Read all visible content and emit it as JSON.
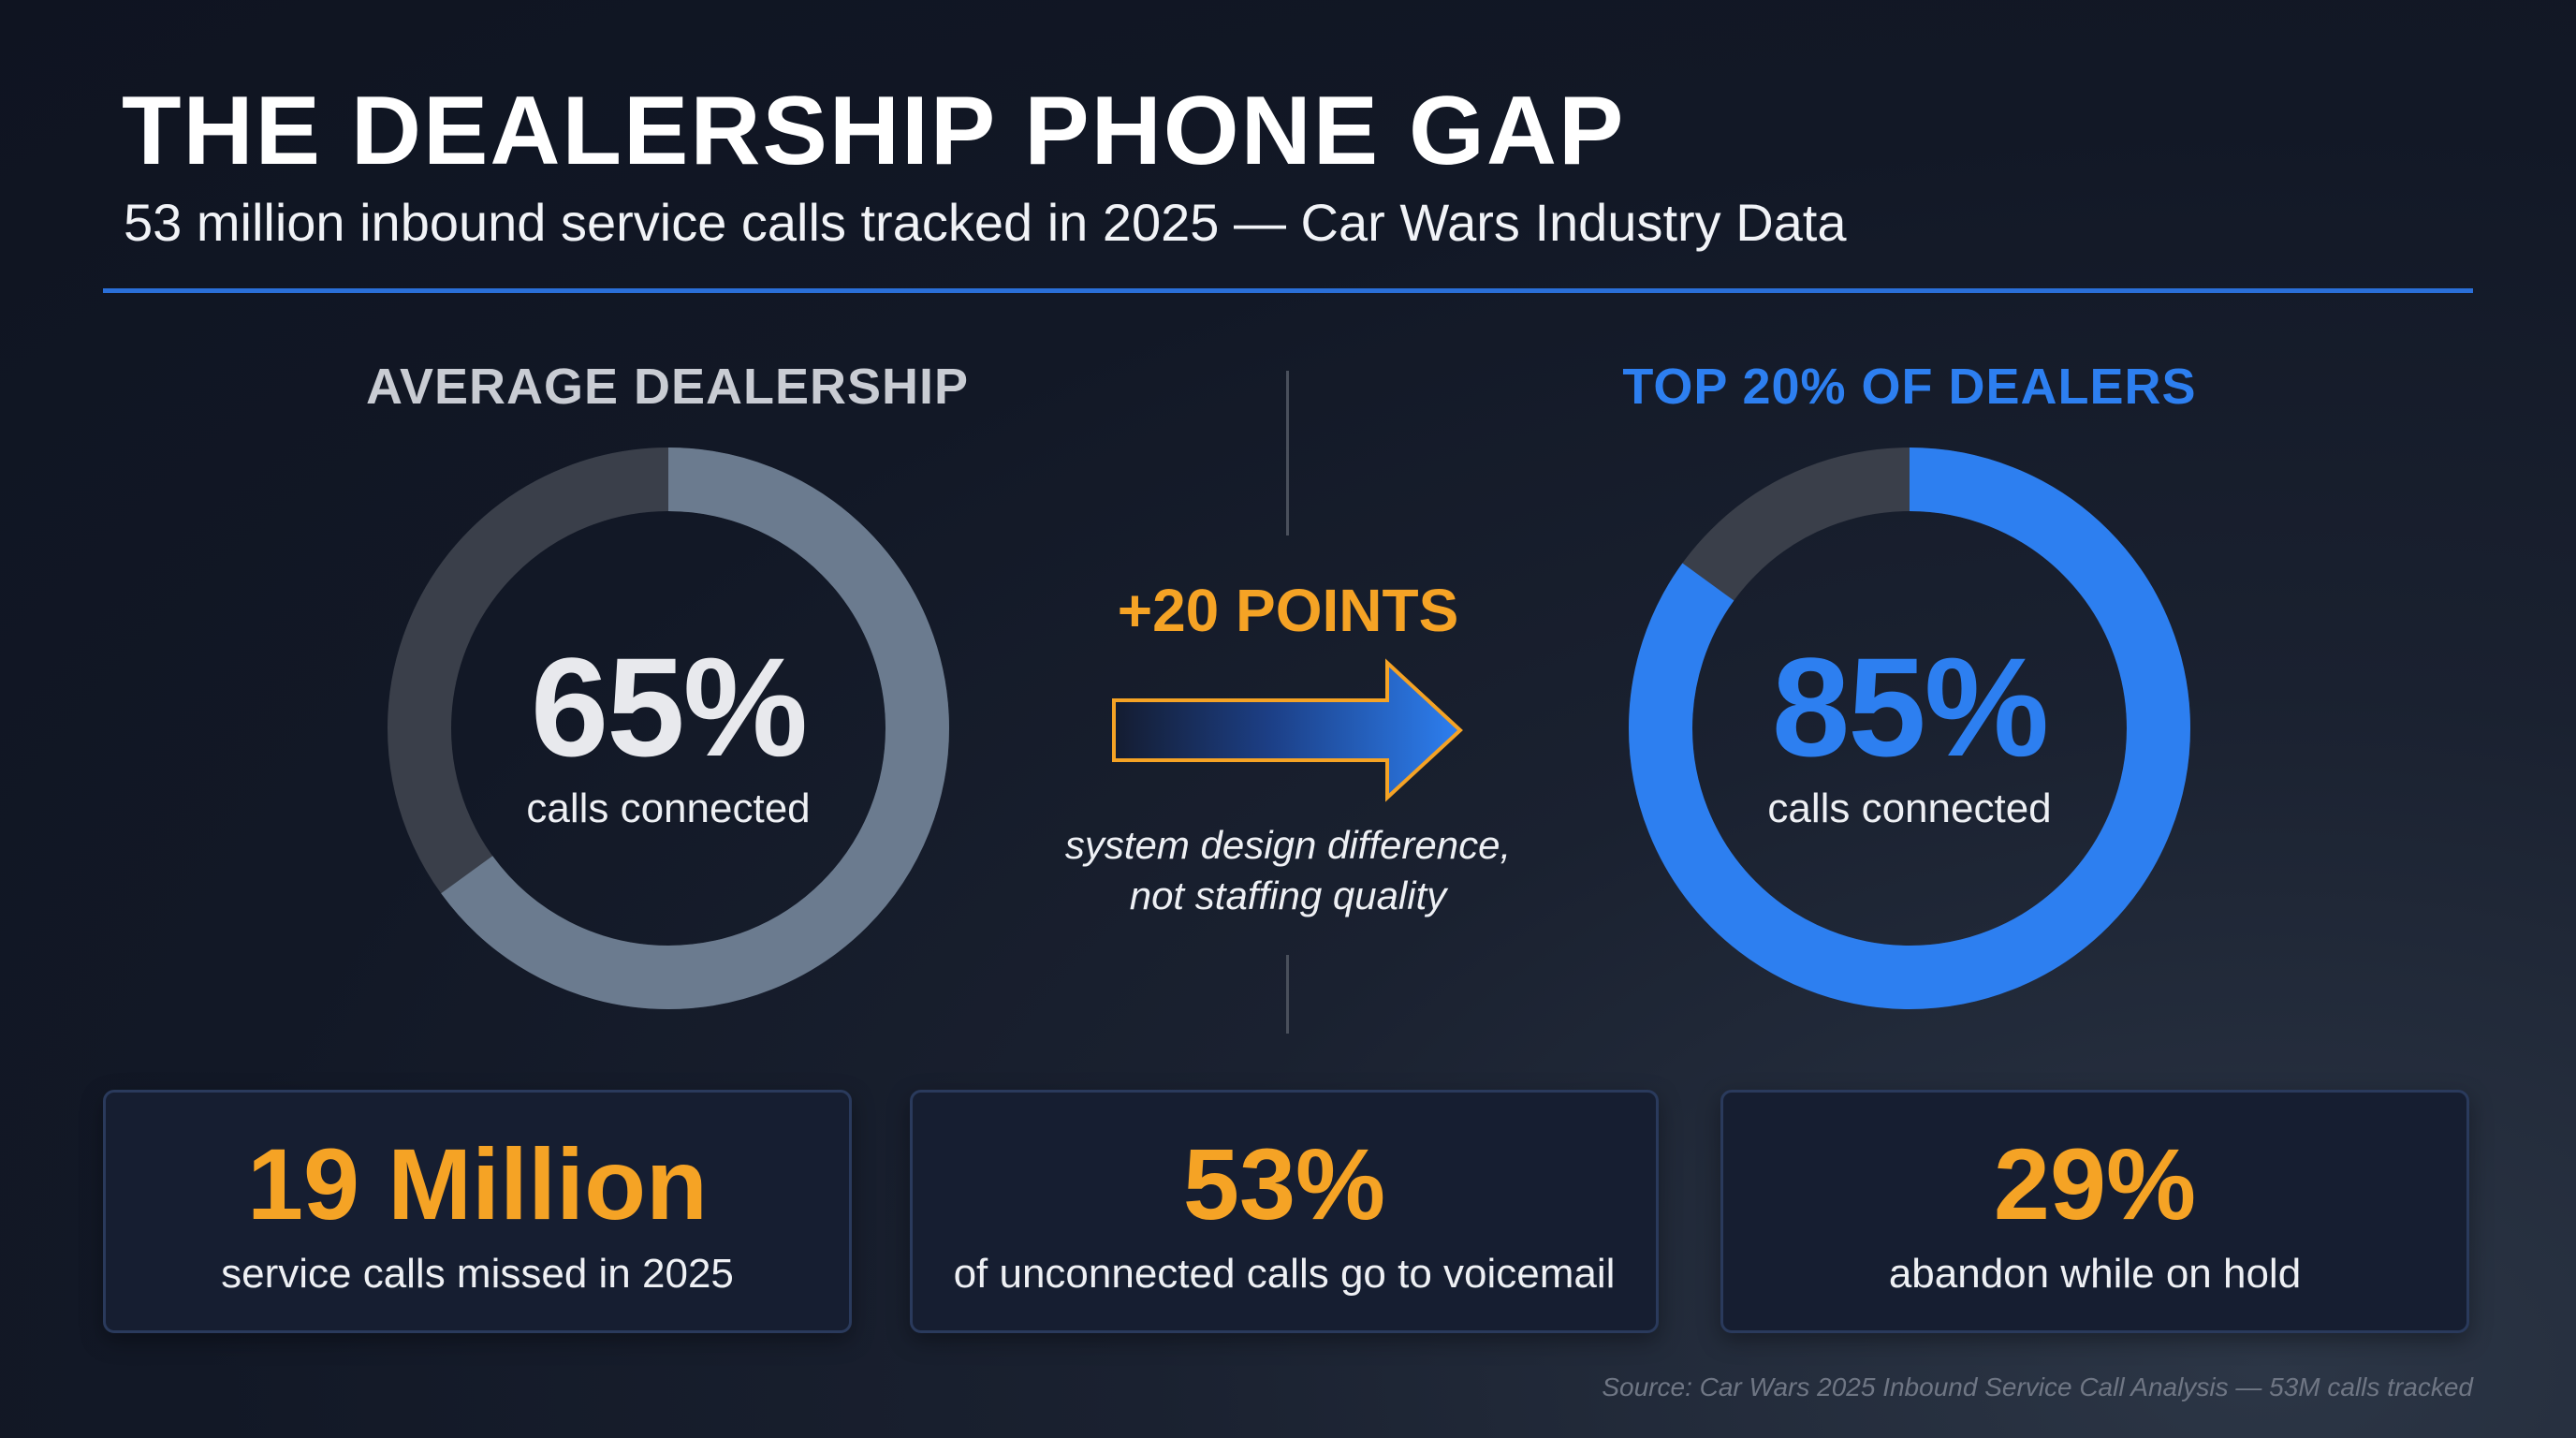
{
  "title": "THE DEALERSHIP PHONE GAP",
  "subtitle": "53 million inbound service calls tracked in 2025 — Car Wars Industry Data",
  "colors": {
    "accent_blue": "#2d7ff0",
    "accent_orange": "#f5a325",
    "average_fill": "#6b7b8f",
    "remainder_dark": "#3a3f4a"
  },
  "chart_data": [
    {
      "type": "pie",
      "title": "AVERAGE DEALERSHIP",
      "center_value": "65%",
      "center_label": "calls connected",
      "value": 65,
      "remainder": 35
    },
    {
      "type": "pie",
      "title": "TOP 20% OF DEALERS",
      "center_value": "85%",
      "center_label": "calls connected",
      "value": 85,
      "remainder": 15
    }
  ],
  "comparison": {
    "gain_label": "+20 POINTS",
    "note_line1": "system design difference,",
    "note_line2": "not staffing quality",
    "arrow_icon": "right-arrow-icon"
  },
  "stats": [
    {
      "value": "19 Million",
      "label": "service calls missed in 2025"
    },
    {
      "value": "53%",
      "label": "of unconnected calls go to voicemail"
    },
    {
      "value": "29%",
      "label": "abandon while on hold"
    }
  ],
  "source": "Source: Car Wars 2025 Inbound Service Call Analysis — 53M calls tracked"
}
